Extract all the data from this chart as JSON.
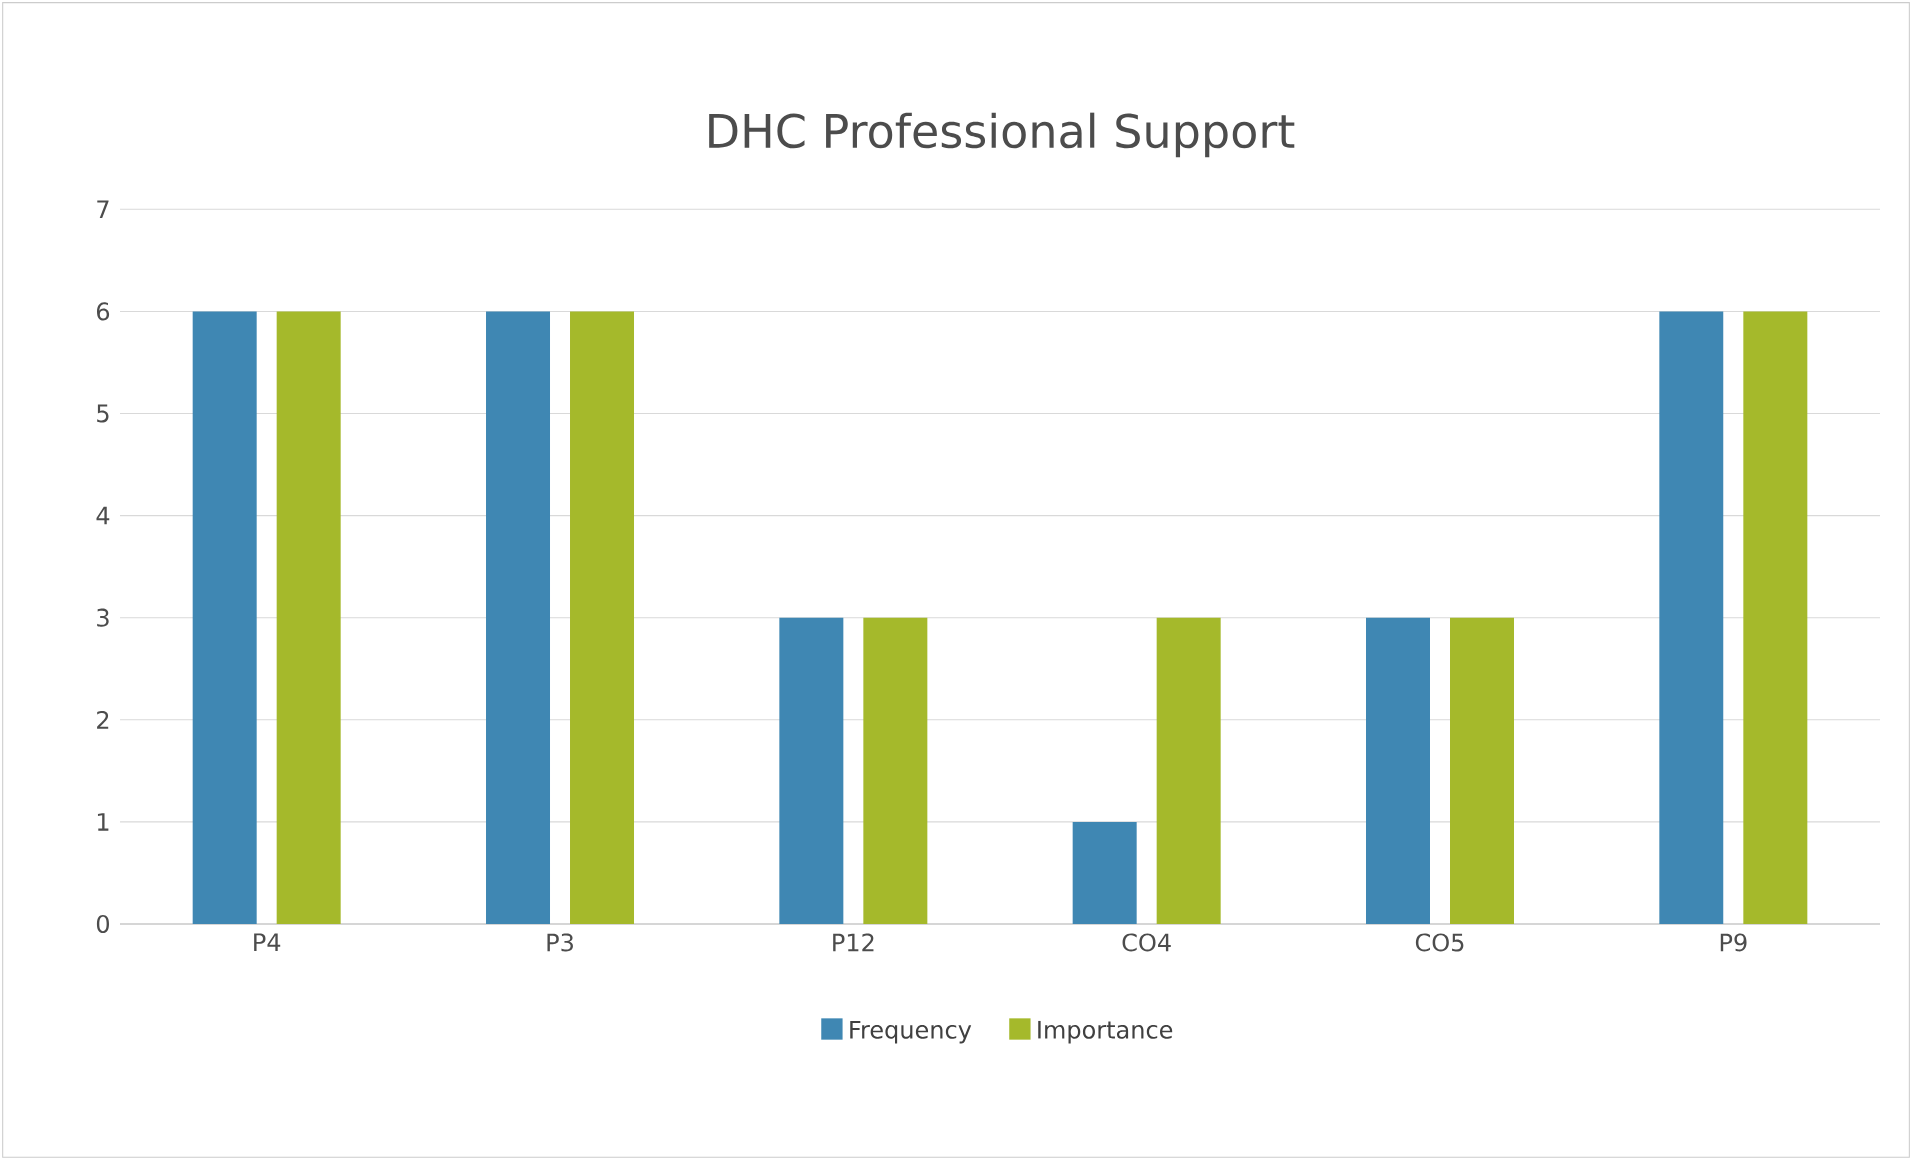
{
  "chart_data": {
    "type": "bar",
    "title": "DHC Professional Support",
    "categories": [
      "P4",
      "P3",
      "P12",
      "CO4",
      "CO5",
      "P9"
    ],
    "series": [
      {
        "name": "Frequency",
        "color": "#3f87b3",
        "values": [
          6,
          6,
          3,
          1,
          3,
          6
        ]
      },
      {
        "name": "Importance",
        "color": "#a5b92b",
        "values": [
          6,
          6,
          3,
          3,
          3,
          6
        ]
      }
    ],
    "ylim": [
      0,
      7
    ],
    "yticks": [
      0,
      1,
      2,
      3,
      4,
      5,
      6,
      7
    ],
    "grid": "y",
    "legend": "bottom"
  }
}
